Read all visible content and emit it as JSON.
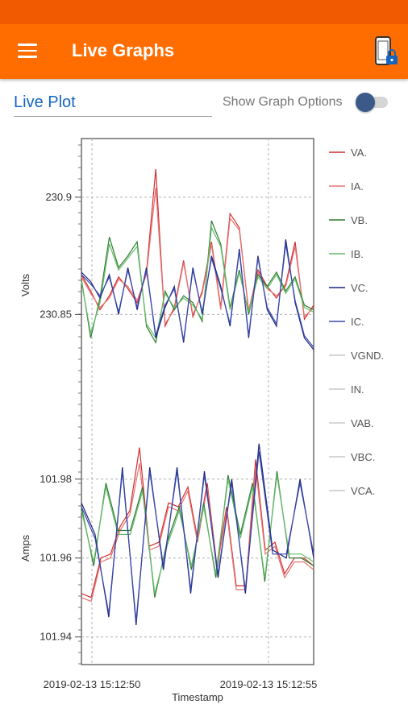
{
  "app_bar": {
    "title": "Live Graphs",
    "menu_icon": "hamburger-menu-icon",
    "action_icon": "phone-lock-icon",
    "background": "#ff6d00"
  },
  "controls": {
    "plot_select_value": "Live Plot",
    "toggle_label": "Show Graph Options",
    "toggle_on": false
  },
  "chart_data": {
    "type": "line",
    "x_title": "Timestamp",
    "x_ticks": [
      "2019-02-13   15:12:50",
      "2019-02-13   15:12:55"
    ],
    "panels": [
      {
        "ylabel": "Volts",
        "ylim": [
          230.8,
          230.925
        ],
        "yticks": [
          230.85,
          230.9
        ],
        "ytick_labels": [
          "230.85",
          "230.9"
        ],
        "series": [
          {
            "name": "VA.",
            "color": "#d32f2f",
            "values": [
              230.867,
              230.86,
              230.852,
              230.858,
              230.866,
              230.861,
              230.855,
              230.868,
              230.912,
              230.845,
              230.853,
              230.873,
              230.849,
              230.86,
              230.881,
              230.853,
              230.893,
              230.887,
              230.851,
              230.869,
              230.862,
              230.857,
              230.863,
              230.881,
              230.848,
              230.854
            ]
          },
          {
            "name": "IA.",
            "color": "#e57373",
            "values": [
              230.866,
              230.859,
              230.853,
              230.857,
              230.865,
              230.862,
              230.856,
              230.867,
              230.904,
              230.846,
              230.852,
              230.872,
              230.85,
              230.859,
              230.88,
              230.852,
              230.891,
              230.886,
              230.852,
              230.868,
              230.861,
              230.858,
              230.862,
              230.879,
              230.849,
              230.853
            ]
          },
          {
            "name": "VB.",
            "color": "#2e7d32",
            "values": [
              230.865,
              230.84,
              230.857,
              230.883,
              230.87,
              230.875,
              230.881,
              230.845,
              230.838,
              230.86,
              230.852,
              230.858,
              230.855,
              230.847,
              230.89,
              230.88,
              230.853,
              230.869,
              230.85,
              230.867,
              230.862,
              230.868,
              230.86,
              230.866,
              230.854,
              230.852
            ]
          },
          {
            "name": "IB.",
            "color": "#66bb6a",
            "values": [
              230.864,
              230.842,
              230.855,
              230.88,
              230.869,
              230.874,
              230.879,
              230.846,
              230.84,
              230.859,
              230.853,
              230.857,
              230.854,
              230.848,
              230.887,
              230.879,
              230.852,
              230.868,
              230.851,
              230.866,
              230.861,
              230.867,
              230.859,
              230.865,
              230.853,
              230.851
            ]
          },
          {
            "name": "VC.",
            "color": "#1a237e",
            "values": [
              230.868,
              230.864,
              230.857,
              230.867,
              230.85,
              230.87,
              230.852,
              230.87,
              230.84,
              230.853,
              230.862,
              230.838,
              230.87,
              230.85,
              230.875,
              230.862,
              230.845,
              230.878,
              230.84,
              230.875,
              230.852,
              230.845,
              230.882,
              230.855,
              230.84,
              230.835
            ]
          },
          {
            "name": "IC.",
            "color": "#3949ab",
            "values": [
              230.867,
              230.863,
              230.858,
              230.866,
              230.851,
              230.869,
              230.853,
              230.869,
              230.841,
              230.854,
              230.861,
              230.839,
              230.869,
              230.851,
              230.874,
              230.861,
              230.846,
              230.877,
              230.841,
              230.874,
              230.853,
              230.846,
              230.88,
              230.856,
              230.841,
              230.836
            ]
          }
        ]
      },
      {
        "ylabel": "Amps",
        "ylim": [
          101.933,
          101.992
        ],
        "yticks": [
          101.94,
          101.96,
          101.98
        ],
        "ytick_labels": [
          "101.94",
          "101.96",
          "101.98"
        ],
        "series": [
          {
            "name": "VA.",
            "color": "#d32f2f",
            "values": [
              101.951,
              101.95,
              101.96,
              101.961,
              101.968,
              101.972,
              101.988,
              101.963,
              101.964,
              101.974,
              101.973,
              101.978,
              101.965,
              101.979,
              101.958,
              101.973,
              101.953,
              101.953,
              101.985,
              101.962,
              101.964,
              101.956,
              101.96,
              101.96,
              101.958
            ]
          },
          {
            "name": "IA.",
            "color": "#e57373",
            "values": [
              101.95,
              101.949,
              101.959,
              101.96,
              101.967,
              101.971,
              101.984,
              101.962,
              101.963,
              101.973,
              101.972,
              101.977,
              101.964,
              101.978,
              101.957,
              101.972,
              101.952,
              101.952,
              101.983,
              101.961,
              101.963,
              101.955,
              101.959,
              101.959,
              101.957
            ]
          },
          {
            "name": "VB.",
            "color": "#2e7d32",
            "values": [
              101.973,
              101.958,
              101.979,
              101.967,
              101.967,
              101.978,
              101.95,
              101.964,
              101.973,
              101.957,
              101.974,
              101.955,
              101.981,
              101.966,
              101.979,
              101.954,
              101.982,
              101.96,
              101.96,
              101.958
            ]
          },
          {
            "name": "IB.",
            "color": "#66bb6a",
            "values": [
              101.972,
              101.959,
              101.978,
              101.966,
              101.966,
              101.977,
              101.951,
              101.963,
              101.972,
              101.958,
              101.973,
              101.956,
              101.98,
              101.965,
              101.978,
              101.955,
              101.981,
              101.961,
              101.961,
              101.959
            ]
          },
          {
            "name": "VC.",
            "color": "#1a237e",
            "values": [
              101.974,
              101.966,
              101.945,
              101.983,
              101.943,
              101.983,
              101.957,
              101.983,
              101.951,
              101.982,
              101.955,
              101.98,
              101.951,
              101.989,
              101.962,
              101.96,
              101.98,
              101.96
            ]
          },
          {
            "name": "IC.",
            "color": "#3949ab",
            "values": [
              101.973,
              101.965,
              101.946,
              101.982,
              101.944,
              101.982,
              101.958,
              101.982,
              101.952,
              101.981,
              101.956,
              101.979,
              101.952,
              101.987,
              101.961,
              101.961,
              101.979,
              101.961
            ]
          }
        ]
      }
    ],
    "legend": [
      {
        "name": "VA.",
        "color": "#d32f2f"
      },
      {
        "name": "IA.",
        "color": "#e57373"
      },
      {
        "name": "VB.",
        "color": "#2e7d32"
      },
      {
        "name": "IB.",
        "color": "#66bb6a"
      },
      {
        "name": "VC.",
        "color": "#1a237e"
      },
      {
        "name": "IC.",
        "color": "#3949ab"
      },
      {
        "name": "VGND.",
        "color": "#c8c8c8"
      },
      {
        "name": "IN.",
        "color": "#c8c8c8"
      },
      {
        "name": "VAB.",
        "color": "#c8c8c8"
      },
      {
        "name": "VBC.",
        "color": "#c8c8c8"
      },
      {
        "name": "VCA.",
        "color": "#c8c8c8"
      }
    ],
    "legend_position": "right",
    "grid": true
  }
}
